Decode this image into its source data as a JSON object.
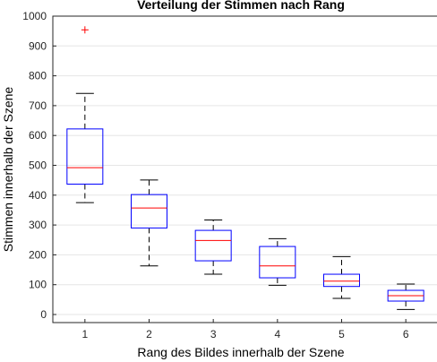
{
  "chart_data": {
    "type": "box",
    "title": "Verteilung der Stimmen nach Rang",
    "xlabel": "Rang des Bildes innerhalb der Szene",
    "ylabel": "Stimmen innerhalb der Szene",
    "categories": [
      "1",
      "2",
      "3",
      "4",
      "5",
      "6"
    ],
    "ylim": [
      -25,
      1000
    ],
    "yticks": [
      0,
      100,
      200,
      300,
      400,
      500,
      600,
      700,
      800,
      900,
      1000
    ],
    "grid": "horizontal",
    "boxes": [
      {
        "category": "1",
        "whisker_low": 375,
        "q1": 437,
        "median": 492,
        "q3": 622,
        "whisker_high": 741,
        "outliers": [
          954
        ]
      },
      {
        "category": "2",
        "whisker_low": 163,
        "q1": 290,
        "median": 357,
        "q3": 402,
        "whisker_high": 451,
        "outliers": []
      },
      {
        "category": "3",
        "whisker_low": 135,
        "q1": 180,
        "median": 248,
        "q3": 282,
        "whisker_high": 317,
        "outliers": []
      },
      {
        "category": "4",
        "whisker_low": 98,
        "q1": 123,
        "median": 163,
        "q3": 228,
        "whisker_high": 254,
        "outliers": []
      },
      {
        "category": "5",
        "whisker_low": 54,
        "q1": 94,
        "median": 112,
        "q3": 135,
        "whisker_high": 194,
        "outliers": []
      },
      {
        "category": "6",
        "whisker_low": 17,
        "q1": 45,
        "median": 63,
        "q3": 81,
        "whisker_high": 102,
        "outliers": []
      }
    ],
    "colors": {
      "box": "#0000ff",
      "median": "#ff0000",
      "whisker": "#000000",
      "outlier": "#ff0000",
      "grid": "#e6e6e6",
      "axis": "#262626"
    }
  }
}
